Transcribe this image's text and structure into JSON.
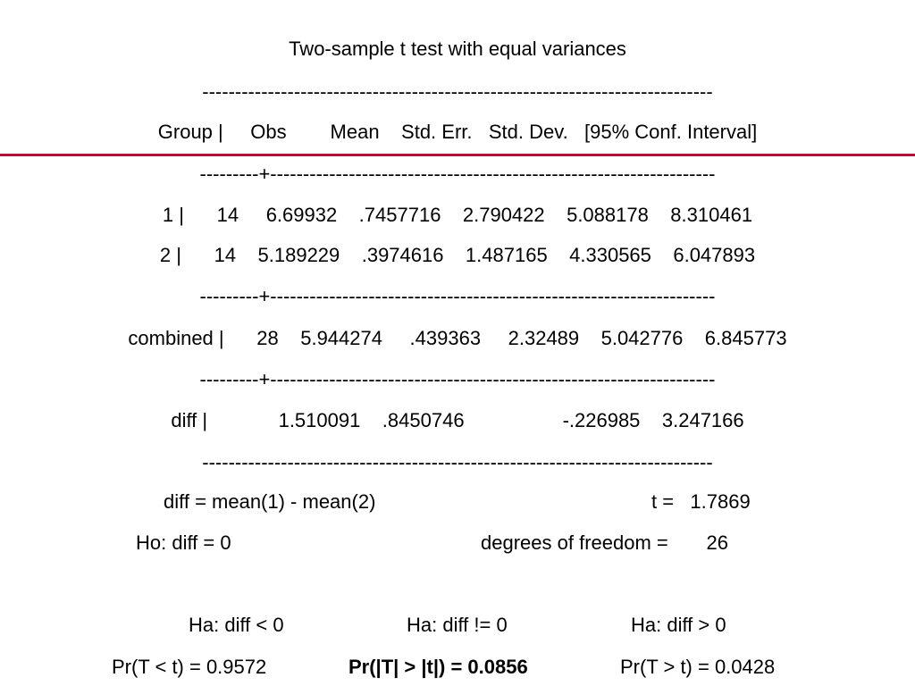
{
  "accent_color": "#b0123c",
  "title": "Two-sample t test with equal variances",
  "separator_full": "------------------------------------------------------------------------------",
  "separator_split": "---------+--------------------------------------------------------------------",
  "header_row": "Group |     Obs        Mean    Std. Err.   Std. Dev.   [95% Conf. Interval]",
  "rows": [
    "1 |      14     6.69932    .7457716    2.790422    5.088178    8.310461",
    "2 |      14    5.189229    .3974616    1.487165    4.330565    6.047893",
    "combined |      28    5.944274     .439363     2.32489    5.042776    6.845773",
    "diff |             1.510091    .8450746                  -.226985    3.247166"
  ],
  "stats": {
    "diff_definition": "diff = mean(1) - mean(2)",
    "t_label": "t =   1.7869",
    "ho": "Ho: diff = 0",
    "df_label": "degrees of freedom =       26"
  },
  "hypotheses": {
    "ha_lt": "Ha: diff < 0",
    "ha_ne": "Ha: diff != 0",
    "ha_gt": "Ha: diff > 0",
    "p_lt": "Pr(T < t) = 0.9572",
    "p_ne": "Pr(|T| > |t|) = 0.0856",
    "p_gt": "Pr(T > t) = 0.0428"
  }
}
